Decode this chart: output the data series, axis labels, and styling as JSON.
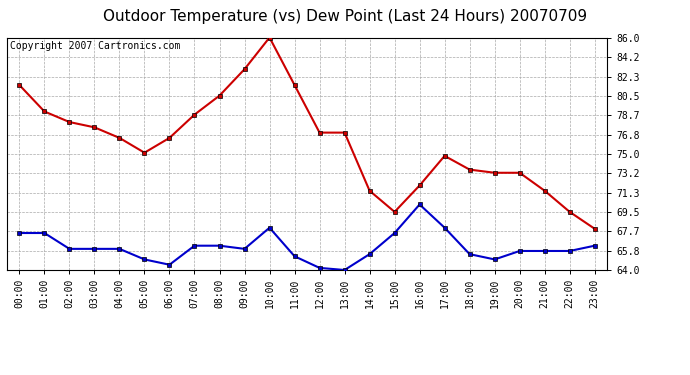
{
  "title": "Outdoor Temperature (vs) Dew Point (Last 24 Hours) 20070709",
  "copyright": "Copyright 2007 Cartronics.com",
  "hours": [
    "00:00",
    "01:00",
    "02:00",
    "03:00",
    "04:00",
    "05:00",
    "06:00",
    "07:00",
    "08:00",
    "09:00",
    "10:00",
    "11:00",
    "12:00",
    "13:00",
    "14:00",
    "15:00",
    "16:00",
    "17:00",
    "18:00",
    "19:00",
    "20:00",
    "21:00",
    "22:00",
    "23:00"
  ],
  "temp": [
    81.5,
    79.0,
    78.0,
    77.5,
    76.5,
    75.1,
    76.5,
    78.7,
    80.5,
    83.0,
    86.0,
    81.5,
    77.0,
    77.0,
    71.5,
    69.5,
    72.0,
    74.8,
    73.5,
    73.2,
    73.2,
    71.5,
    69.5,
    67.9
  ],
  "dew": [
    67.5,
    67.5,
    66.0,
    66.0,
    66.0,
    65.0,
    64.5,
    66.3,
    66.3,
    66.0,
    68.0,
    65.3,
    64.2,
    64.0,
    65.5,
    67.5,
    70.2,
    68.0,
    65.5,
    65.0,
    65.8,
    65.8,
    65.8,
    66.3
  ],
  "temp_color": "#cc0000",
  "dew_color": "#0000cc",
  "bg_color": "#ffffff",
  "grid_color": "#aaaaaa",
  "ylim_min": 64.0,
  "ylim_max": 86.0,
  "yticks": [
    64.0,
    65.8,
    67.7,
    69.5,
    71.3,
    73.2,
    75.0,
    76.8,
    78.7,
    80.5,
    82.3,
    84.2,
    86.0
  ],
  "title_fontsize": 11,
  "copyright_fontsize": 7,
  "tick_fontsize": 7,
  "line_width": 1.5,
  "marker_size": 3.5
}
